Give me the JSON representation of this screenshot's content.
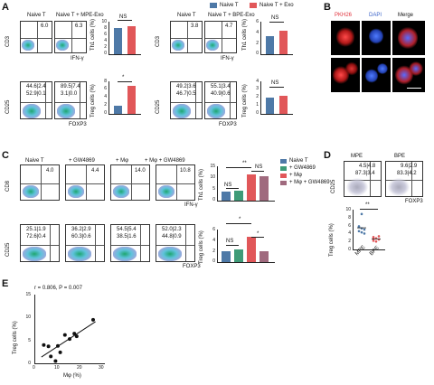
{
  "panels": {
    "A": "A",
    "B": "B",
    "C": "C",
    "D": "D",
    "E": "E"
  },
  "A": {
    "left": {
      "col1": "Naive T",
      "col2": "Naive T + MPE-Exo"
    },
    "right": {
      "col1": "Naive T",
      "col2": "Naive T + BPE-Exo"
    },
    "legend": {
      "naive": "Naive T",
      "exo": "Naive T + Exo"
    },
    "cd3": "CD3",
    "ifng": "IFN-γ",
    "cd25": "CD25",
    "foxp3": "FOXP3",
    "th1_ylabel": "Th1 cells (%)",
    "treg_ylabel": "Treg cells (%)",
    "ns": "NS",
    "star": "*",
    "q_th1": [
      "6.0",
      "6.3",
      "3.8",
      "4.7"
    ],
    "q_treg": [
      {
        "ul": "44.6",
        "ur": "2.4",
        "ll": "52.9",
        "lr": "0.1"
      },
      {
        "ul": "89.5",
        "ur": "7.4",
        "ll": "3.1",
        "lr": "0.0"
      },
      {
        "ul": "49.2",
        "ur": "3.6",
        "ll": "46.7",
        "lr": "0.5"
      },
      {
        "ul": "55.1",
        "ur": "3.4",
        "ll": "40.9",
        "lr": "0.6"
      }
    ],
    "ticks_th1_left": [
      "10",
      "8",
      "6",
      "4",
      "2",
      "0"
    ],
    "ticks_th1_right": [
      "6",
      "4",
      "2",
      "0"
    ],
    "ticks_treg_left": [
      "8",
      "6",
      "4",
      "2",
      "0"
    ],
    "ticks_treg_right": [
      "4",
      "3",
      "2",
      "1",
      "0"
    ]
  },
  "B": {
    "pkh26": "PKH26",
    "dapi": "DAPI",
    "merge": "Merge"
  },
  "C": {
    "cols": [
      "Naive T",
      "+ GW4869",
      "+ Mφ",
      "+ Mφ + GW4869"
    ],
    "cd8": "CD8",
    "ifng": "IFN-γ",
    "cd25": "CD25",
    "foxp3": "FOXP3",
    "q_th1": [
      "4.0",
      "4.4",
      "14.0",
      "10.8"
    ],
    "q_treg": [
      {
        "ul": "25.1",
        "ur": "1.9",
        "ll": "72.6",
        "lr": "0.4"
      },
      {
        "ul": "36.2",
        "ur": "2.9",
        "ll": "60.3",
        "lr": "0.6"
      },
      {
        "ul": "54.5",
        "ur": "5.4",
        "ll": "38.5",
        "lr": "1.6"
      },
      {
        "ul": "52.0",
        "ur": "2.3",
        "ll": "44.8",
        "lr": "0.9"
      }
    ],
    "legend": [
      "Naive T",
      "+ GW4869",
      "+ Mφ",
      "+ Mφ + GW4869"
    ],
    "th1_ylabel": "Th1 cells (%)",
    "treg_ylabel": "Treg cells (%)",
    "sig": {
      "ss": "**",
      "ns": "NS",
      "s": "*"
    },
    "ticks_th1": [
      "15",
      "10",
      "5",
      "0"
    ],
    "ticks_treg": [
      "6",
      "4",
      "2",
      "0"
    ]
  },
  "D": {
    "mpe": "MPE",
    "bpe": "BPE",
    "cd25": "CD25",
    "foxp3": "FOXP3",
    "q": [
      {
        "ul": "4.5",
        "ur": "4.8",
        "ll": "87.3",
        "lr": "3.4"
      },
      {
        "ul": "9.6",
        "ur": "2.9",
        "ll": "83.3",
        "lr": "4.2"
      }
    ],
    "ylabel": "Treg cells (%)",
    "sig": "**",
    "ticks": [
      "10",
      "8",
      "6",
      "4",
      "2",
      "0"
    ],
    "xcats": [
      "MPE",
      "BPE"
    ]
  },
  "E": {
    "stat": "r = 0.806, P = 0.007",
    "ylabel": "Treg cells (%)",
    "xlabel": "Mφ (%)",
    "yticks": [
      "15",
      "10",
      "5",
      "0"
    ],
    "xticks": [
      "0",
      "10",
      "20",
      "30"
    ]
  },
  "colors": {
    "blue": "#4e79a7",
    "red": "#e15759",
    "teal": "#3e9b78",
    "pink": "#d05a8a",
    "mauve": "#a06a7e"
  },
  "chart_data": [
    {
      "type": "bar",
      "panel": "A-Th1-MPE",
      "ylabel": "Th1 cells (%)",
      "ylim": [
        0,
        10
      ],
      "categories": [
        "Naive T",
        "Naive T + MPE-Exo"
      ],
      "values": [
        7.8,
        8.4
      ]
    },
    {
      "type": "bar",
      "panel": "A-Th1-BPE",
      "ylabel": "Th1 cells (%)",
      "ylim": [
        0,
        6
      ],
      "categories": [
        "Naive T",
        "Naive T + BPE-Exo"
      ],
      "values": [
        3.3,
        4.3
      ]
    },
    {
      "type": "bar",
      "panel": "A-Treg-MPE",
      "ylabel": "Treg cells (%)",
      "ylim": [
        0,
        8
      ],
      "categories": [
        "Naive T",
        "Naive T + MPE-Exo"
      ],
      "values": [
        1.9,
        6.9
      ]
    },
    {
      "type": "bar",
      "panel": "A-Treg-BPE",
      "ylabel": "Treg cells (%)",
      "ylim": [
        0,
        4
      ],
      "categories": [
        "Naive T",
        "Naive T + BPE-Exo"
      ],
      "values": [
        2.0,
        2.2
      ]
    },
    {
      "type": "bar",
      "panel": "C-Th1",
      "ylabel": "Th1 cells (%)",
      "ylim": [
        0,
        15
      ],
      "categories": [
        "Naive T",
        "+ GW4869",
        "+ Mφ",
        "+ Mφ + GW4869"
      ],
      "values": [
        4.0,
        4.4,
        11.5,
        10.8
      ]
    },
    {
      "type": "bar",
      "panel": "C-Treg",
      "ylabel": "Treg cells (%)",
      "ylim": [
        0,
        6
      ],
      "categories": [
        "Naive T",
        "+ GW4869",
        "+ Mφ",
        "+ Mφ + GW4869"
      ],
      "values": [
        2.0,
        2.4,
        4.7,
        2.0
      ]
    },
    {
      "type": "scatter",
      "panel": "D",
      "ylabel": "Treg cells (%)",
      "ylim": [
        0,
        10
      ],
      "series": [
        {
          "name": "MPE",
          "points": [
            5.8,
            5.3,
            5.0,
            4.6,
            4.3,
            4.0,
            5.6,
            8.9
          ]
        },
        {
          "name": "BPE",
          "points": [
            3.1,
            2.8,
            2.5,
            2.2,
            2.0,
            3.3,
            2.7
          ]
        }
      ]
    },
    {
      "type": "scatter",
      "panel": "E",
      "xlabel": "Mφ (%)",
      "ylabel": "Treg cells (%)",
      "xlim": [
        0,
        30
      ],
      "ylim": [
        0,
        15
      ],
      "x": [
        4,
        6,
        7,
        9,
        10,
        11,
        13,
        15,
        17,
        18,
        25
      ],
      "y": [
        4.0,
        3.7,
        1.5,
        0.5,
        3.8,
        2.4,
        6.2,
        5.3,
        6.5,
        5.9,
        9.5
      ]
    }
  ]
}
